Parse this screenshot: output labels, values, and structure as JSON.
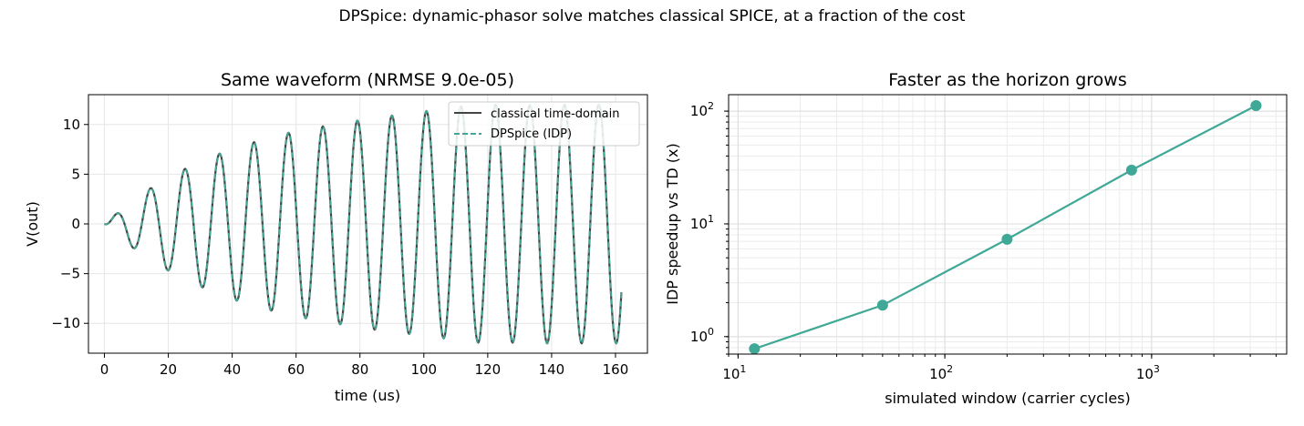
{
  "suptitle": "DPSpice: dynamic-phasor solve matches classical SPICE, at a fraction of the cost",
  "colors": {
    "td": "#444444",
    "idp": "#3fa896",
    "grid": "#e6e6e6"
  },
  "chart_data": [
    {
      "type": "line",
      "title": "Same waveform (NRMSE 9.0e-05)",
      "xlabel": "time (us)",
      "ylabel": "V(out)",
      "xlim": [
        -5,
        170
      ],
      "ylim": [
        -13,
        13
      ],
      "xticks": [
        0,
        20,
        40,
        60,
        80,
        100,
        120,
        140,
        160
      ],
      "xtick_labels": [
        "0",
        "20",
        "40",
        "60",
        "80",
        "100",
        "120",
        "140",
        "160"
      ],
      "yticks": [
        10,
        5,
        0,
        -5,
        -10
      ],
      "ytick_labels": [
        "10",
        "5",
        "0",
        "−5",
        "−10"
      ],
      "grid": true,
      "legend_position": "upper right",
      "series": [
        {
          "name": "classical time-domain",
          "style": "solid"
        },
        {
          "name": "DPSpice (IDP)",
          "style": "dashed"
        }
      ],
      "waveform": {
        "t_end": 162,
        "period": 10.8,
        "phase_offset": 0.9,
        "peaks_t": [
          5.5,
          16,
          27,
          38,
          49,
          59.5,
          70,
          81,
          92,
          103,
          114,
          124,
          135,
          146,
          157
        ],
        "peaks_v": [
          1.5,
          3.9,
          5.8,
          7.3,
          8.4,
          9.3,
          9.9,
          10.5,
          11,
          11.5,
          12,
          12,
          12,
          12,
          12
        ],
        "troughs_t": [
          10.5,
          21,
          32,
          43,
          54,
          65,
          76,
          86.5,
          97.5,
          108,
          119,
          130,
          141,
          152,
          162
        ],
        "troughs_v": [
          -2.8,
          -4.9,
          -6.6,
          -7.9,
          -8.9,
          -9.6,
          -10.2,
          -10.7,
          -11.1,
          -11.5,
          -11.9,
          -11.9,
          -12,
          -12,
          -12
        ]
      }
    },
    {
      "type": "line",
      "title": "Faster as the horizon grows",
      "xlabel": "simulated window (carrier cycles)",
      "ylabel": "IDP speedup vs TD (x)",
      "xscale": "log",
      "yscale": "log",
      "xlim": [
        9,
        4500
      ],
      "ylim": [
        0.7,
        140
      ],
      "xticks": [
        10,
        100,
        1000
      ],
      "xtick_labels": [
        [
          "10",
          "1"
        ],
        [
          "10",
          "2"
        ],
        [
          "10",
          "3"
        ]
      ],
      "yticks": [
        1,
        10,
        100
      ],
      "ytick_labels": [
        [
          "10",
          "0"
        ],
        [
          "10",
          "1"
        ],
        [
          "10",
          "2"
        ]
      ],
      "grid": true,
      "x": [
        12,
        50,
        200,
        800,
        3200
      ],
      "y": [
        0.78,
        1.9,
        7.3,
        30,
        112
      ]
    }
  ]
}
